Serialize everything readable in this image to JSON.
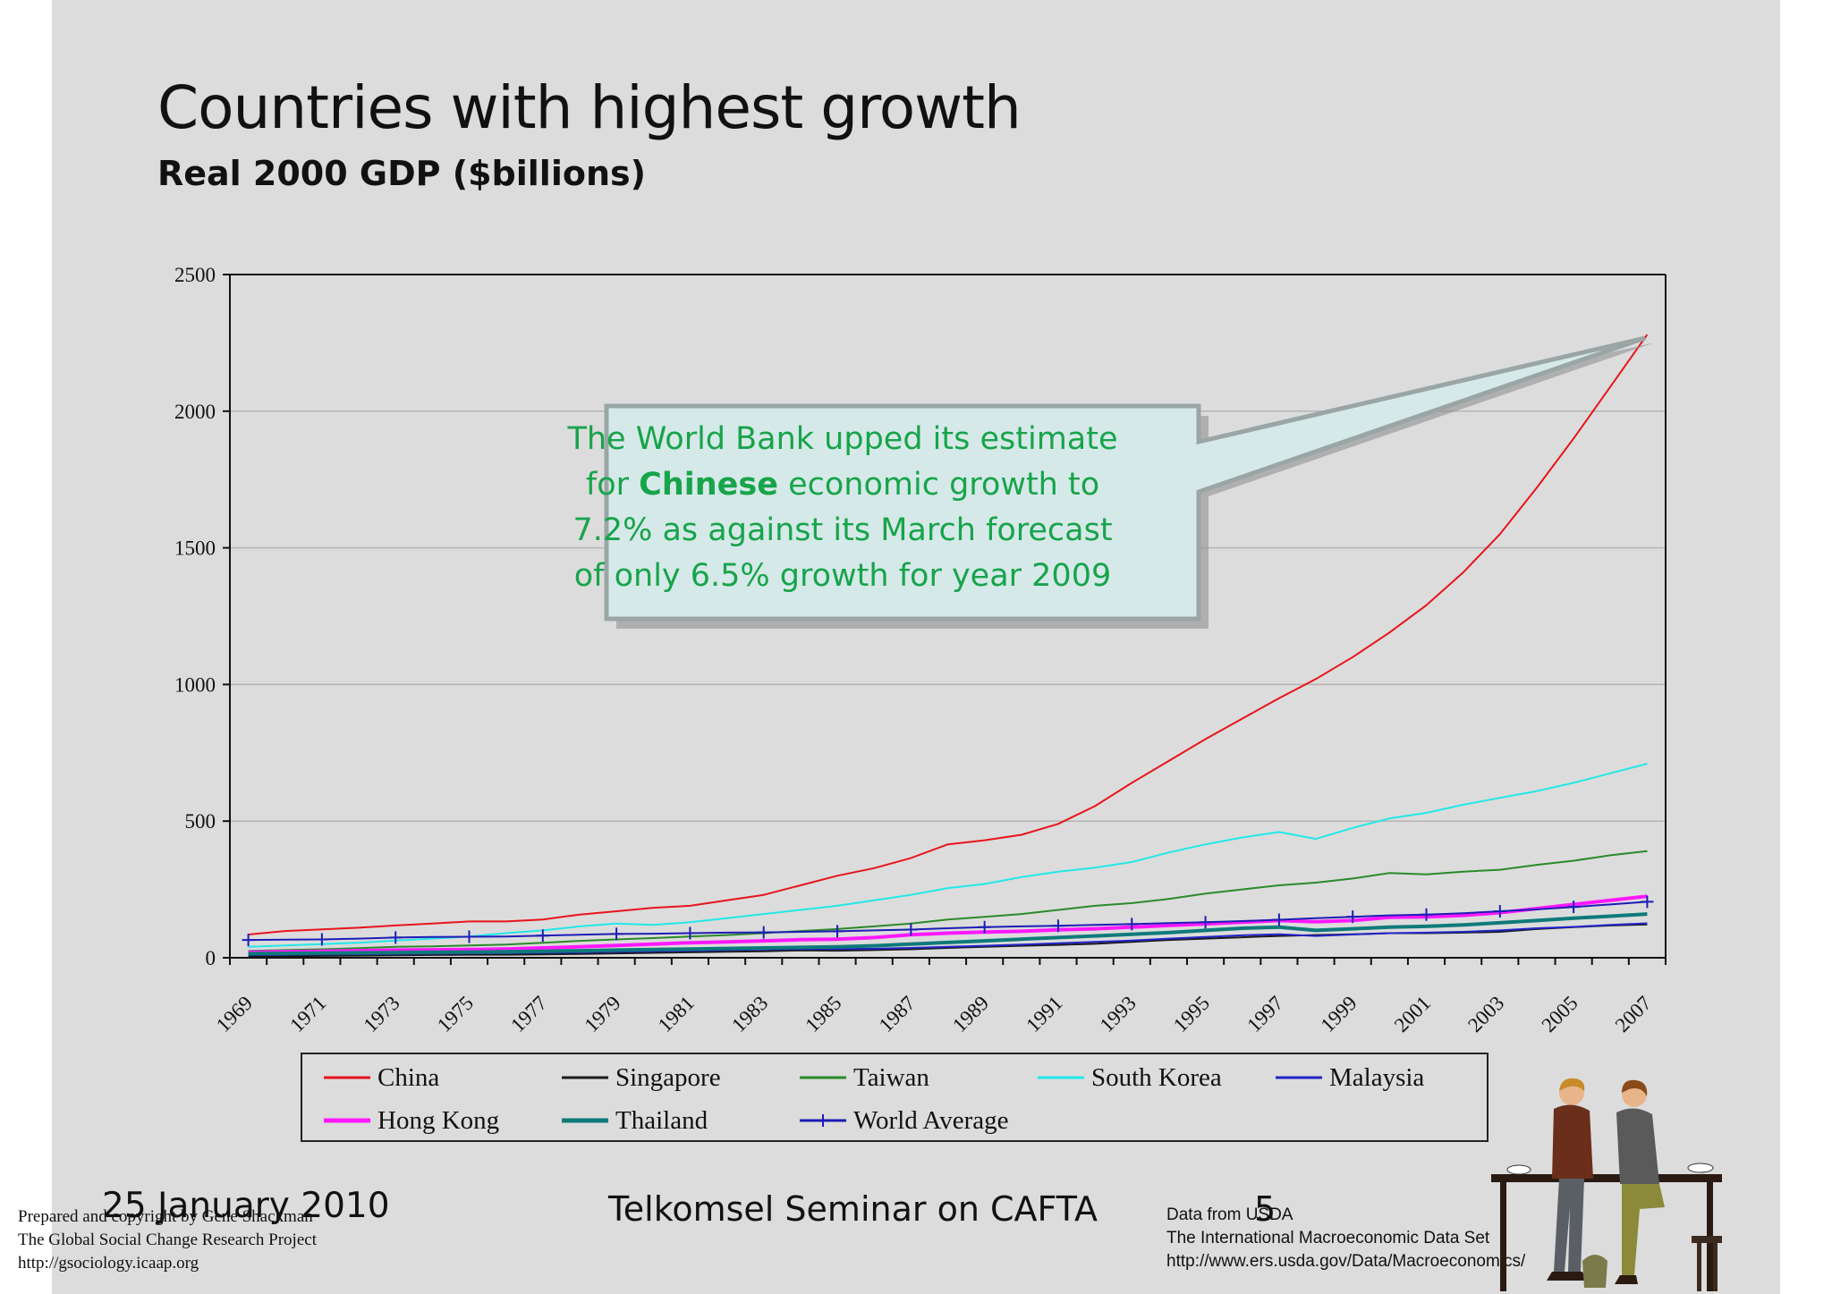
{
  "title": "Countries with highest growth",
  "subtitle": "Real 2000 GDP ($billions)",
  "callout": {
    "line1": "The World Bank upped its estimate",
    "line2_pre": "for ",
    "line2_em": "Chinese",
    "line2_post": " economic growth to",
    "line3": "7.2% as against its March forecast",
    "line4": "of only 6.5% growth for year 2009"
  },
  "footer": {
    "date": "25 January 2010",
    "seminar": "Telkomsel Seminar on CAFTA",
    "page": "5",
    "credit_left": [
      "Prepared and copyright by Gene Shackman",
      "The Global Social Change Research Project",
      "http://gsociology.icaap.org"
    ],
    "credit_right": [
      "Data from USDA",
      "The International Macroeconomic Data Set",
      "http://www.ers.usda.gov/Data/Macroeconomics/"
    ]
  },
  "chart_data": {
    "type": "line",
    "title": "",
    "xlabel": "",
    "ylabel": "",
    "x": [
      1969,
      1970,
      1971,
      1972,
      1973,
      1974,
      1975,
      1976,
      1977,
      1978,
      1979,
      1980,
      1981,
      1982,
      1983,
      1984,
      1985,
      1986,
      1987,
      1988,
      1989,
      1990,
      1991,
      1992,
      1993,
      1994,
      1995,
      1996,
      1997,
      1998,
      1999,
      2000,
      2001,
      2002,
      2003,
      2004,
      2005,
      2006,
      2007
    ],
    "xticks": [
      "1969",
      "1971",
      "1973",
      "1975",
      "1977",
      "1979",
      "1981",
      "1983",
      "1985",
      "1987",
      "1989",
      "1991",
      "1993",
      "1995",
      "1997",
      "1999",
      "2001",
      "2003",
      "2005",
      "2007"
    ],
    "yticks": [
      "0",
      "500",
      "1000",
      "1500",
      "2000",
      "2500"
    ],
    "ylim": [
      0,
      2500
    ],
    "grid": true,
    "legend_position": "bottom",
    "series": [
      {
        "name": "China",
        "color": "#e8141b",
        "width": 2,
        "marker": "none",
        "values": [
          85,
          98,
          104,
          110,
          118,
          125,
          133,
          133,
          140,
          158,
          170,
          183,
          190,
          210,
          230,
          265,
          300,
          328,
          365,
          415,
          430,
          450,
          490,
          555,
          640,
          720,
          800,
          875,
          950,
          1020,
          1100,
          1190,
          1290,
          1410,
          1550,
          1720,
          1900,
          2090,
          2280
        ]
      },
      {
        "name": "Singapore",
        "color": "#1a1a1a",
        "width": 2,
        "marker": "none",
        "values": [
          5,
          6,
          7,
          8,
          9,
          10,
          11,
          11,
          12,
          14,
          16,
          18,
          20,
          22,
          24,
          27,
          26,
          28,
          31,
          36,
          40,
          44,
          47,
          51,
          58,
          65,
          70,
          75,
          80,
          83,
          86,
          90,
          90,
          92,
          95,
          105,
          112,
          118,
          122
        ]
      },
      {
        "name": "Taiwan",
        "color": "#2a8a2a",
        "width": 2,
        "marker": "none",
        "values": [
          25,
          28,
          31,
          35,
          40,
          42,
          45,
          48,
          55,
          62,
          67,
          72,
          78,
          83,
          90,
          98,
          105,
          115,
          125,
          140,
          150,
          160,
          175,
          190,
          200,
          215,
          235,
          250,
          265,
          275,
          290,
          310,
          305,
          315,
          322,
          340,
          355,
          375,
          390
        ]
      },
      {
        "name": "South Korea",
        "color": "#22e8e8",
        "width": 2,
        "marker": "none",
        "values": [
          40,
          45,
          50,
          55,
          63,
          70,
          78,
          90,
          100,
          115,
          125,
          120,
          130,
          145,
          160,
          175,
          190,
          210,
          230,
          255,
          270,
          295,
          315,
          330,
          350,
          385,
          415,
          440,
          460,
          435,
          475,
          510,
          530,
          560,
          585,
          610,
          640,
          675,
          710
        ]
      },
      {
        "name": "Malaysia",
        "color": "#2323c8",
        "width": 2,
        "marker": "none",
        "values": [
          10,
          11,
          12,
          13,
          14,
          15,
          16,
          17,
          18,
          20,
          22,
          24,
          26,
          28,
          30,
          32,
          32,
          33,
          36,
          40,
          44,
          48,
          53,
          58,
          63,
          70,
          76,
          82,
          86,
          80,
          85,
          90,
          92,
          95,
          100,
          108,
          113,
          120,
          126
        ]
      },
      {
        "name": "Hong Kong",
        "color": "#ff18ff",
        "width": 4,
        "marker": "none",
        "values": [
          20,
          22,
          24,
          26,
          28,
          29,
          30,
          32,
          36,
          40,
          45,
          50,
          55,
          58,
          62,
          66,
          68,
          74,
          84,
          90,
          94,
          97,
          102,
          106,
          112,
          118,
          124,
          130,
          136,
          132,
          136,
          148,
          150,
          155,
          165,
          180,
          195,
          210,
          225
        ]
      },
      {
        "name": "Thailand",
        "color": "#0e7a7a",
        "width": 4,
        "marker": "none",
        "values": [
          15,
          16,
          17,
          18,
          19,
          20,
          21,
          22,
          24,
          26,
          28,
          30,
          32,
          34,
          36,
          38,
          40,
          44,
          50,
          56,
          62,
          68,
          74,
          80,
          86,
          92,
          100,
          108,
          112,
          100,
          106,
          112,
          115,
          120,
          128,
          136,
          145,
          152,
          160
        ]
      },
      {
        "name": "World Average",
        "color": "#1d1db5",
        "width": 2,
        "marker": "plus",
        "values": [
          65,
          66,
          67,
          70,
          74,
          76,
          77,
          78,
          81,
          84,
          87,
          88,
          90,
          92,
          93,
          95,
          97,
          100,
          103,
          108,
          112,
          115,
          117,
          120,
          123,
          127,
          130,
          134,
          139,
          145,
          150,
          155,
          158,
          163,
          170,
          177,
          186,
          195,
          205
        ]
      }
    ]
  }
}
